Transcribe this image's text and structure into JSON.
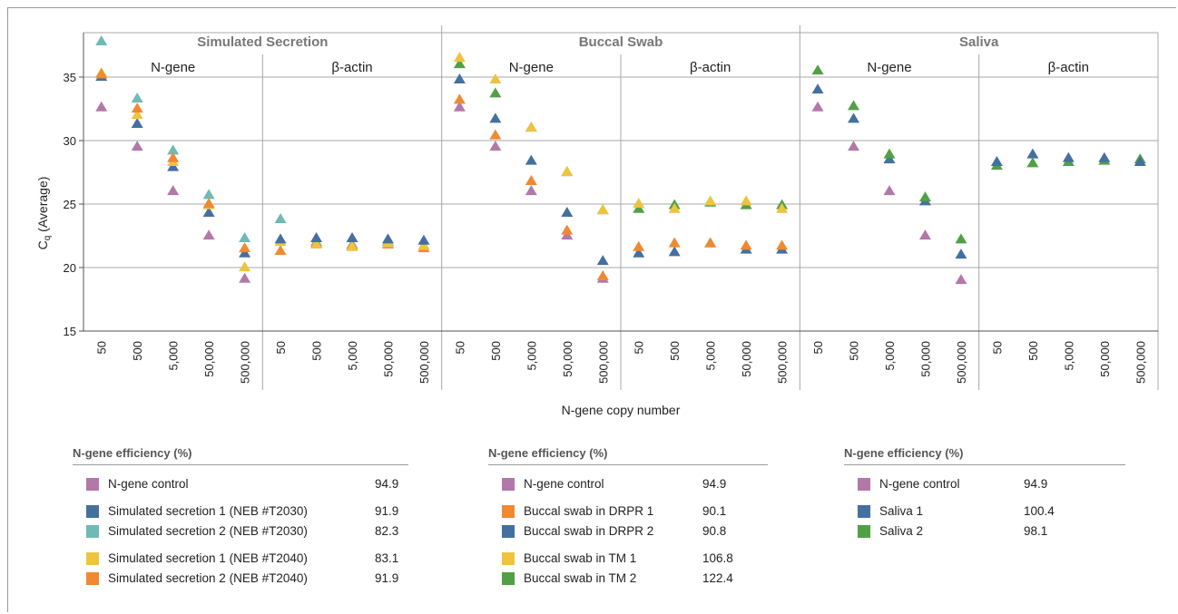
{
  "colors": {
    "control": "#B278A8",
    "blue": "#44709F",
    "teal": "#6FBAB5",
    "yellow": "#EEC43E",
    "orange": "#EF8A31",
    "green": "#51A046"
  },
  "chart_data": {
    "type": "scatter",
    "marker": "triangle",
    "ylabel_main": "C",
    "ylabel_sub": "q",
    "ylabel_rest": " (Average)",
    "xlabel": "N-gene copy number",
    "ylim": [
      15,
      38.5
    ],
    "yticks": [
      15,
      20,
      25,
      30,
      35
    ],
    "grid": true,
    "categories": [
      "50",
      "500",
      "5,000",
      "50,000",
      "500,000"
    ],
    "groups": [
      {
        "name": "Simulated Secretion",
        "panels": [
          {
            "name": "N-gene",
            "series": [
              {
                "color": "control",
                "values": [
                  32.6,
                  29.5,
                  26.0,
                  22.5,
                  19.1
                ]
              },
              {
                "color": "blue",
                "values": [
                  35.0,
                  31.3,
                  27.9,
                  24.3,
                  21.1
                ]
              },
              {
                "color": "teal",
                "values": [
                  37.8,
                  33.3,
                  29.2,
                  25.7,
                  22.3
                ]
              },
              {
                "color": "yellow",
                "values": [
                  35.3,
                  32.0,
                  28.3,
                  24.9,
                  20.0
                ]
              },
              {
                "color": "orange",
                "values": [
                  35.2,
                  32.5,
                  28.6,
                  25.0,
                  21.5
                ]
              }
            ]
          },
          {
            "name": "β-actin",
            "series": [
              {
                "color": "teal",
                "values": [
                  23.8,
                  22.0,
                  21.8,
                  22.0,
                  21.7
                ]
              },
              {
                "color": "orange",
                "values": [
                  21.3,
                  21.9,
                  21.7,
                  21.8,
                  21.5
                ]
              },
              {
                "color": "yellow",
                "values": [
                  22.0,
                  21.8,
                  21.6,
                  21.9,
                  21.7
                ]
              },
              {
                "color": "blue",
                "values": [
                  22.2,
                  22.3,
                  22.3,
                  22.2,
                  22.1
                ]
              }
            ]
          }
        ]
      },
      {
        "name": "Buccal Swab",
        "panels": [
          {
            "name": "N-gene",
            "series": [
              {
                "color": "control",
                "values": [
                  32.6,
                  29.5,
                  26.0,
                  22.5,
                  19.1
                ]
              },
              {
                "color": "orange",
                "values": [
                  33.2,
                  30.4,
                  26.8,
                  22.9,
                  19.3
                ]
              },
              {
                "color": "blue",
                "values": [
                  34.8,
                  31.7,
                  28.4,
                  24.3,
                  20.5
                ]
              },
              {
                "color": "green",
                "values": [
                  36.0,
                  33.7,
                  31.0,
                  27.5,
                  24.5
                ]
              },
              {
                "color": "yellow",
                "values": [
                  36.5,
                  34.8,
                  31.0,
                  27.5,
                  24.5
                ]
              }
            ]
          },
          {
            "name": "β-actin",
            "series": [
              {
                "color": "blue",
                "values": [
                  21.1,
                  21.2,
                  21.9,
                  21.4,
                  21.4
                ]
              },
              {
                "color": "orange",
                "values": [
                  21.6,
                  21.9,
                  21.9,
                  21.7,
                  21.7
                ]
              },
              {
                "color": "green",
                "values": [
                  24.6,
                  24.9,
                  25.1,
                  24.9,
                  24.9
                ]
              },
              {
                "color": "yellow",
                "values": [
                  25.0,
                  24.6,
                  25.2,
                  25.2,
                  24.6
                ]
              }
            ]
          }
        ]
      },
      {
        "name": "Saliva",
        "panels": [
          {
            "name": "N-gene",
            "series": [
              {
                "color": "control",
                "values": [
                  32.6,
                  29.5,
                  26.0,
                  22.5,
                  19.0
                ]
              },
              {
                "color": "blue",
                "values": [
                  34.0,
                  31.7,
                  28.5,
                  25.2,
                  21.0
                ]
              },
              {
                "color": "green",
                "values": [
                  35.5,
                  32.7,
                  28.9,
                  25.5,
                  22.2
                ]
              }
            ]
          },
          {
            "name": "β-actin",
            "series": [
              {
                "color": "green",
                "values": [
                  28.0,
                  28.2,
                  28.3,
                  28.4,
                  28.5
                ]
              },
              {
                "color": "blue",
                "values": [
                  28.3,
                  28.9,
                  28.6,
                  28.6,
                  28.3
                ]
              }
            ]
          }
        ]
      }
    ]
  },
  "legends": [
    {
      "title": "N-gene efficiency (%)",
      "entries": [
        {
          "color": "control",
          "label": "N-gene control",
          "value": "94.9",
          "gap": false
        },
        {
          "color": "blue",
          "label": "Simulated secretion 1 (NEB #T2030)",
          "value": "91.9",
          "gap": true
        },
        {
          "color": "teal",
          "label": "Simulated secretion 2 (NEB #T2030)",
          "value": "82.3",
          "gap": false
        },
        {
          "color": "yellow",
          "label": "Simulated secretion 1 (NEB #T2040)",
          "value": "83.1",
          "gap": true
        },
        {
          "color": "orange",
          "label": "Simulated secretion 2 (NEB #T2040)",
          "value": "91.9",
          "gap": false
        }
      ]
    },
    {
      "title": "N-gene efficiency (%)",
      "entries": [
        {
          "color": "control",
          "label": "N-gene control",
          "value": "94.9",
          "gap": false
        },
        {
          "color": "orange",
          "label": "Buccal swab in DRPR 1",
          "value": "90.1",
          "gap": true
        },
        {
          "color": "blue",
          "label": "Buccal swab in DRPR 2",
          "value": "90.8",
          "gap": false
        },
        {
          "color": "yellow",
          "label": "Buccal swab in TM 1",
          "value": "106.8",
          "gap": true
        },
        {
          "color": "green",
          "label": "Buccal swab in TM 2",
          "value": "122.4",
          "gap": false
        }
      ]
    },
    {
      "title": "N-gene efficiency (%)",
      "entries": [
        {
          "color": "control",
          "label": "N-gene control",
          "value": "94.9",
          "gap": false
        },
        {
          "color": "blue",
          "label": "Saliva 1",
          "value": "100.4",
          "gap": true
        },
        {
          "color": "green",
          "label": "Saliva 2",
          "value": "98.1",
          "gap": false
        }
      ]
    }
  ]
}
